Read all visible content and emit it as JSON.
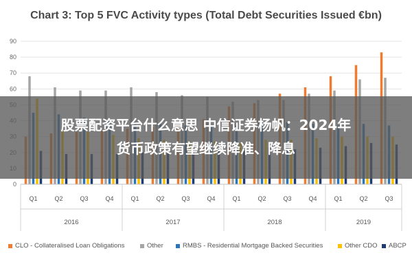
{
  "chart_data": {
    "type": "bar",
    "title": "Chart 3: Top 5 FVC Activity types (Total Debt Securities Issued €bn)",
    "ylim": [
      0,
      90
    ],
    "yticks": [
      0,
      10,
      20,
      30,
      40,
      50,
      60,
      70,
      80,
      90
    ],
    "grid": true,
    "legend_placement": "bottom",
    "categories": [
      "Q1",
      "Q2",
      "Q3",
      "Q4",
      "Q1",
      "Q2",
      "Q3",
      "Q4",
      "Q1",
      "Q2",
      "Q3",
      "Q4",
      "Q1",
      "Q2",
      "Q3"
    ],
    "years": [
      {
        "label": "2016",
        "quarters": 4
      },
      {
        "label": "2017",
        "quarters": 4
      },
      {
        "label": "2018",
        "quarters": 4
      },
      {
        "label": "2019",
        "quarters": 3
      }
    ],
    "series": [
      {
        "name": "CLO - Collateralised Loan Obligations",
        "color": "#ed7d31",
        "values": [
          30,
          32,
          33,
          34,
          35,
          36,
          37,
          41,
          49,
          51,
          57,
          61,
          68,
          75,
          83
        ]
      },
      {
        "name": "Other",
        "color": "#a5a5a5",
        "values": [
          68,
          61,
          59,
          59,
          61,
          58,
          56,
          55,
          52,
          53,
          53,
          57,
          59,
          66,
          67
        ]
      },
      {
        "name": "RMBS - Residential Mortgage Backed Securities",
        "color": "#2e75b6",
        "values": [
          45,
          44,
          42,
          40,
          39,
          38,
          37,
          36,
          37,
          39,
          39,
          38,
          37,
          38,
          37
        ]
      },
      {
        "name": "Other CDO",
        "color": "#ffc000",
        "values": [
          54,
          34,
          33,
          31,
          29,
          28,
          27,
          27,
          26,
          28,
          28,
          29,
          30,
          30,
          30
        ]
      },
      {
        "name": "ABCP",
        "color": "#1f3b73",
        "values": [
          21,
          19,
          19,
          19,
          20,
          20,
          20,
          21,
          21,
          23,
          22,
          23,
          24,
          26,
          25
        ]
      }
    ]
  },
  "overlay": {
    "line1": "股票配资平台什么意思 中信证券杨帆：2024年",
    "line2": "货币政策有望继续降准、降息"
  }
}
